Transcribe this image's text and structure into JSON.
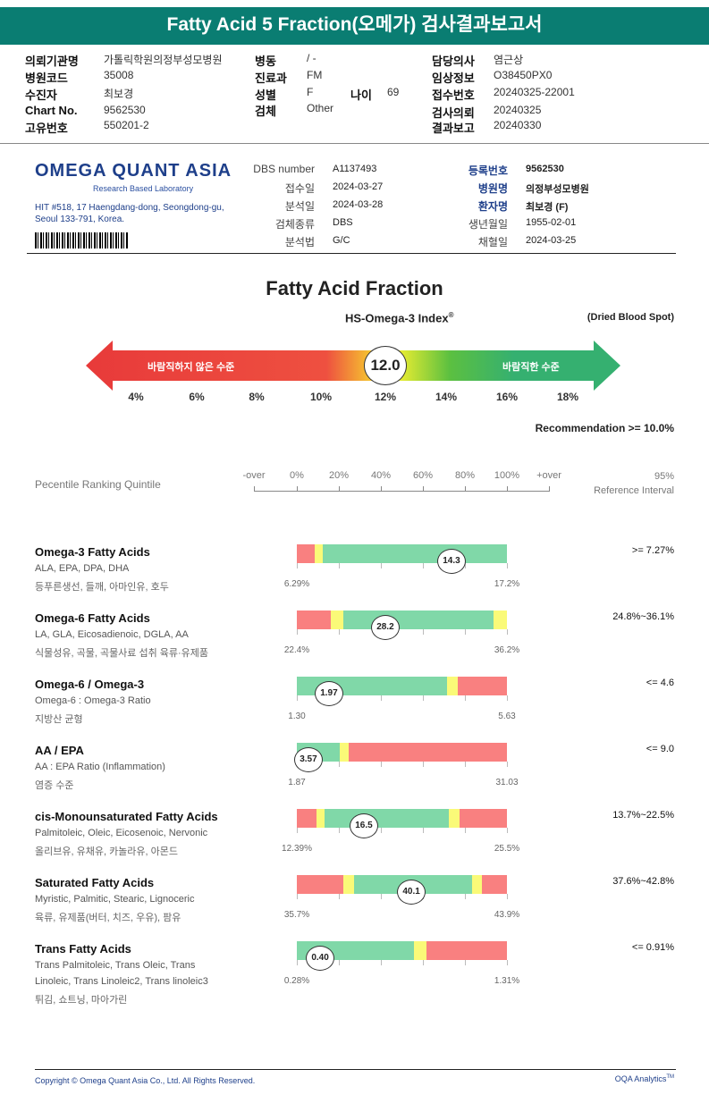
{
  "title": "Fatty Acid 5 Fraction(오메가) 검사결과보고서",
  "header": {
    "col1": [
      {
        "label": "의뢰기관명",
        "value": "가톨릭학원의정부성모병원"
      },
      {
        "label": "병원코드",
        "value": "35008"
      },
      {
        "label": "수진자",
        "value": "최보경"
      },
      {
        "label": "Chart No.",
        "value": "9562530"
      },
      {
        "label": "고유번호",
        "value": "550201-2"
      }
    ],
    "col2": [
      {
        "label": "병동",
        "value": "/ -"
      },
      {
        "label": "진료과",
        "value": "FM"
      },
      {
        "label": "성별",
        "value": "F"
      },
      {
        "label": "검체",
        "value": "Other"
      }
    ],
    "age": {
      "label": "나이",
      "value": "69"
    },
    "col3": [
      {
        "label": "담당의사",
        "value": "염근상"
      },
      {
        "label": "임상정보",
        "value": "O38450PX0"
      },
      {
        "label": "접수번호",
        "value": "20240325-22001"
      },
      {
        "label": "검사의뢰",
        "value": "20240325"
      },
      {
        "label": "결과보고",
        "value": "20240330"
      }
    ]
  },
  "lab": {
    "logo": "OMEGA QUANT ASIA",
    "tagline": "Research Based Laboratory",
    "address1": "HIT #518, 17 Haengdang-dong, Seongdong-gu,",
    "address2": "Seoul 133-791, Korea.",
    "mid": [
      {
        "label": "DBS number",
        "value": "A1137493"
      },
      {
        "label": "접수일",
        "value": "2024-03-27"
      },
      {
        "label": "분석일",
        "value": "2024-03-28"
      },
      {
        "label": "검체종류",
        "value": "DBS"
      },
      {
        "label": "분석법",
        "value": "G/C"
      }
    ],
    "right": [
      {
        "label": "등록번호",
        "value": "9562530"
      },
      {
        "label": "병원명",
        "value": "의정부성모병원"
      },
      {
        "label": "환자명",
        "value": "최보경 (F)"
      },
      {
        "label": "생년월일",
        "value": "1955-02-01"
      },
      {
        "label": "채혈일",
        "value": "2024-03-25"
      }
    ]
  },
  "report_title": "Fatty Acid Fraction",
  "index": {
    "title": "HS-Omega-3 Index",
    "sup": "®",
    "sample": "(Dried Blood Spot)",
    "value": "12.0",
    "bad_label": "바람직하지 않은 수준",
    "good_label": "바람직한 수준",
    "ticks": [
      "4%",
      "6%",
      "8%",
      "10%",
      "12%",
      "14%",
      "16%",
      "18%"
    ],
    "recommendation": "Recommendation  >= 10.0%"
  },
  "ranking": {
    "label": "Pecentile Ranking Quintile",
    "axis": [
      "-over",
      "0%",
      "20%",
      "40%",
      "60%",
      "80%",
      "100%",
      "+over"
    ],
    "ref1": "95%",
    "ref2": "Reference Interval"
  },
  "colors": {
    "red": "#f98080",
    "yellow": "#fafa78",
    "green": "#80d8a8",
    "brand": "#0a7d72"
  },
  "rows": [
    {
      "name": "Omega-3 Fatty Acids",
      "sub": [
        "ALA, EPA, DPA, DHA"
      ],
      "kr": "등푸른생선, 들깨, 아마인유, 호두",
      "value": "14.3",
      "pct": 73.6,
      "min": "6.29%",
      "max": "17.2%",
      "ref": ">= 7.27%",
      "segs": [
        [
          "red",
          8.5
        ],
        [
          "yellow",
          3.8
        ],
        [
          "green",
          87.7
        ]
      ]
    },
    {
      "name": "Omega-6 Fatty Acids",
      "sub": [
        "LA, GLA, Eicosadienoic, DGLA, AA"
      ],
      "kr": "식물성유, 곡물, 곡물사료 섭취 육류·유제품",
      "value": "28.2",
      "pct": 42.1,
      "min": "22.4%",
      "max": "36.2%",
      "ref": "24.8%~36.1%",
      "segs": [
        [
          "red",
          16.2
        ],
        [
          "yellow",
          5.9
        ],
        [
          "green",
          71.5
        ],
        [
          "yellow",
          6.4
        ]
      ]
    },
    {
      "name": "Omega-6 / Omega-3",
      "sub": [
        "Omega-6 : Omega-3 Ratio"
      ],
      "kr": "지방산 균형",
      "value": "1.97",
      "pct": 15.3,
      "min": "1.30",
      "max": "5.63",
      "ref": "<= 4.6",
      "segs": [
        [
          "green",
          71.5
        ],
        [
          "yellow",
          5.1
        ],
        [
          "red",
          23.4
        ]
      ]
    },
    {
      "name": "AA / EPA",
      "sub": [
        "AA : EPA Ratio (Inflammation)"
      ],
      "kr": "염증 수준",
      "value": "3.57",
      "pct": 5.5,
      "min": "1.87",
      "max": "31.03",
      "ref": "<= 9.0",
      "segs": [
        [
          "green",
          20.4
        ],
        [
          "yellow",
          4.3
        ],
        [
          "red",
          75.3
        ]
      ]
    },
    {
      "name": "cis-Monounsaturated Fatty Acids",
      "sub": [
        "Palmitoleic, Oleic, Eicosenoic, Nervonic"
      ],
      "kr": "올리브유, 유채유, 카놀라유, 아몬드",
      "value": "16.5",
      "pct": 31.9,
      "min": "12.39%",
      "max": "25.5%",
      "ref": "13.7%~22.5%",
      "segs": [
        [
          "red",
          9.4
        ],
        [
          "yellow",
          3.8
        ],
        [
          "green",
          59.1
        ],
        [
          "yellow",
          5.1
        ],
        [
          "red",
          22.6
        ]
      ]
    },
    {
      "name": "Saturated Fatty Acids",
      "sub": [
        "Myristic, Palmitic, Stearic, Lignoceric"
      ],
      "kr": "육류, 유제품(버터, 치즈, 우유), 팜유",
      "value": "40.1",
      "pct": 54.5,
      "min": "35.7%",
      "max": "43.9%",
      "ref": "37.6%~42.8%",
      "segs": [
        [
          "red",
          22.1
        ],
        [
          "yellow",
          5.1
        ],
        [
          "green",
          56.2
        ],
        [
          "yellow",
          4.7
        ],
        [
          "red",
          11.9
        ]
      ]
    },
    {
      "name": "Trans Fatty Acids",
      "sub": [
        "Trans Palmitoleic, Trans Oleic, Trans",
        "Linoleic, Trans Linoleic2, Trans linoleic3"
      ],
      "kr": "튀김, 쇼트닝, 마아가린",
      "value": "0.40",
      "pct": 11.1,
      "min": "0.28%",
      "max": "1.31%",
      "ref": "<= 0.91%",
      "segs": [
        [
          "green",
          55.7
        ],
        [
          "yellow",
          6.0
        ],
        [
          "red",
          38.3
        ]
      ]
    }
  ],
  "footer": {
    "copyright": "Copyright © Omega Quant Asia Co., Ltd.  All Rights Reserved.",
    "brand": "OQA Analytics",
    "tm": "TM"
  }
}
